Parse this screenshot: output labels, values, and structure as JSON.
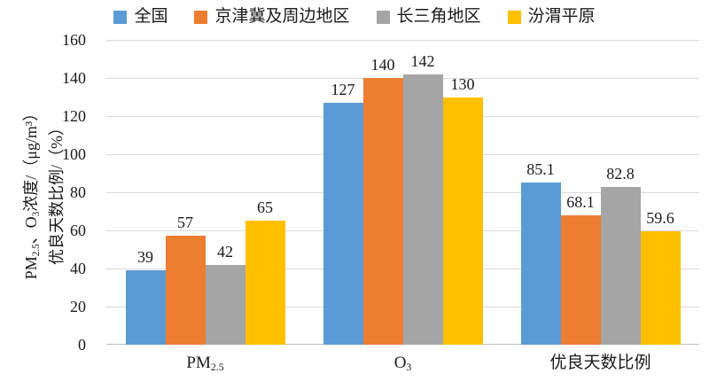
{
  "legend": {
    "position": "top",
    "items": [
      {
        "label": "全国",
        "color": "#5B9BD5"
      },
      {
        "label": "京津冀及周边地区",
        "color": "#ED7D31"
      },
      {
        "label": "长三角地区",
        "color": "#A5A5A5"
      },
      {
        "label": "汾渭平原",
        "color": "#FFC000"
      }
    ]
  },
  "y_axis": {
    "title_lines_text": [
      "PM2.5、O3浓度/（μg/m³）",
      "优良天数比例/（%）"
    ],
    "title_lines": [
      [
        {
          "t": "PM"
        },
        {
          "t": "2.5",
          "sub": true
        },
        {
          "t": "、O"
        },
        {
          "t": "3",
          "sub": true
        },
        {
          "t": "浓度/（μg/m³）"
        }
      ],
      [
        {
          "t": "优良天数比例/（%）"
        }
      ]
    ],
    "ticks": [
      0,
      20,
      40,
      60,
      80,
      100,
      120,
      140,
      160
    ]
  },
  "chart_data": {
    "type": "bar",
    "title": "",
    "xlabel": "",
    "ylabel": "PM2.5、O3浓度/（μg/m³） 优良天数比例/（%）",
    "ylim": [
      0,
      160
    ],
    "ytick_step": 20,
    "grid": true,
    "legend_position": "top",
    "data_labels": true,
    "categories": [
      "PM2.5",
      "O3",
      "优良天数比例"
    ],
    "categories_display": [
      [
        {
          "t": "PM"
        },
        {
          "t": "2.5",
          "sub": true
        }
      ],
      [
        {
          "t": "O"
        },
        {
          "t": "3",
          "sub": true
        }
      ],
      [
        {
          "t": "优良天数比例"
        }
      ]
    ],
    "series": [
      {
        "name": "全国",
        "color": "#5B9BD5",
        "values": [
          39,
          127,
          85.1
        ]
      },
      {
        "name": "京津冀及周边地区",
        "color": "#ED7D31",
        "values": [
          57,
          140,
          68.1
        ]
      },
      {
        "name": "长三角地区",
        "color": "#A5A5A5",
        "values": [
          42,
          142,
          82.8
        ]
      },
      {
        "name": "汾渭平原",
        "color": "#FFC000",
        "values": [
          65,
          130,
          59.6
        ]
      }
    ]
  },
  "style": {
    "gridline_color": "#D9D9D9",
    "axis_line_color": "#BFBFBF",
    "text_color": "#1a1a1a",
    "background": "#ffffff"
  }
}
